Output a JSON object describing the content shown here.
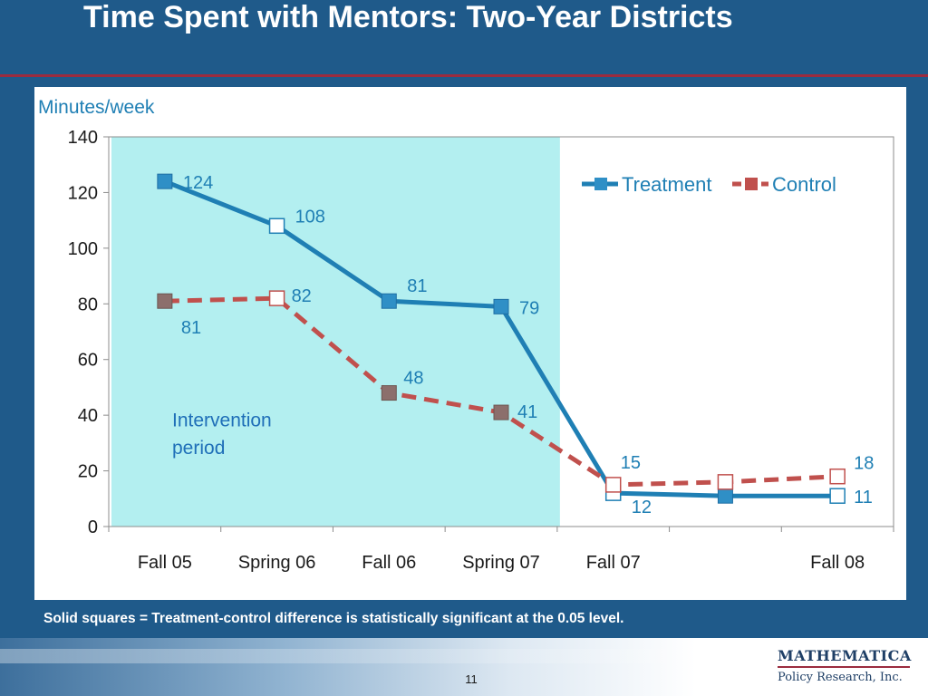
{
  "slide": {
    "title": "Time Spent with Mentors: Two-Year Districts",
    "footnote": "Solid squares = Treatment-control difference is statistically significant at the 0.05 level.",
    "page_number": "11",
    "logo": {
      "line1": "MATHEMATICA",
      "line2": "Policy Research, Inc."
    }
  },
  "chart_data": {
    "type": "line",
    "title": "",
    "ylabel": "Minutes/week",
    "xlabel": "",
    "ylim": [
      0,
      140
    ],
    "yticks": [
      0,
      20,
      40,
      60,
      80,
      100,
      120,
      140
    ],
    "categories": [
      "Fall 05",
      "Spring 06",
      "Fall 06",
      "Spring 07",
      "Fall 07",
      "",
      "Fall 08"
    ],
    "legend_position": "top-right",
    "shaded_region": {
      "from": "Fall 05",
      "to": "Spring 07",
      "label": "Intervention period",
      "color": "#b3eff0"
    },
    "series": [
      {
        "name": "Treatment",
        "color": "#1f7fb4",
        "style": "solid",
        "values": [
          124,
          108,
          81,
          79,
          12,
          11,
          11
        ],
        "labels": [
          "124",
          "108",
          "81",
          "79",
          "12",
          "",
          "11"
        ],
        "significant": [
          true,
          false,
          true,
          true,
          false,
          true,
          false
        ]
      },
      {
        "name": "Control",
        "color": "#c0504d",
        "style": "dashed",
        "values": [
          81,
          82,
          48,
          41,
          15,
          16,
          18
        ],
        "labels": [
          "81",
          "82",
          "48",
          "41",
          "15",
          "",
          "18"
        ],
        "significant": [
          true,
          false,
          true,
          true,
          false,
          false,
          false
        ]
      }
    ]
  }
}
